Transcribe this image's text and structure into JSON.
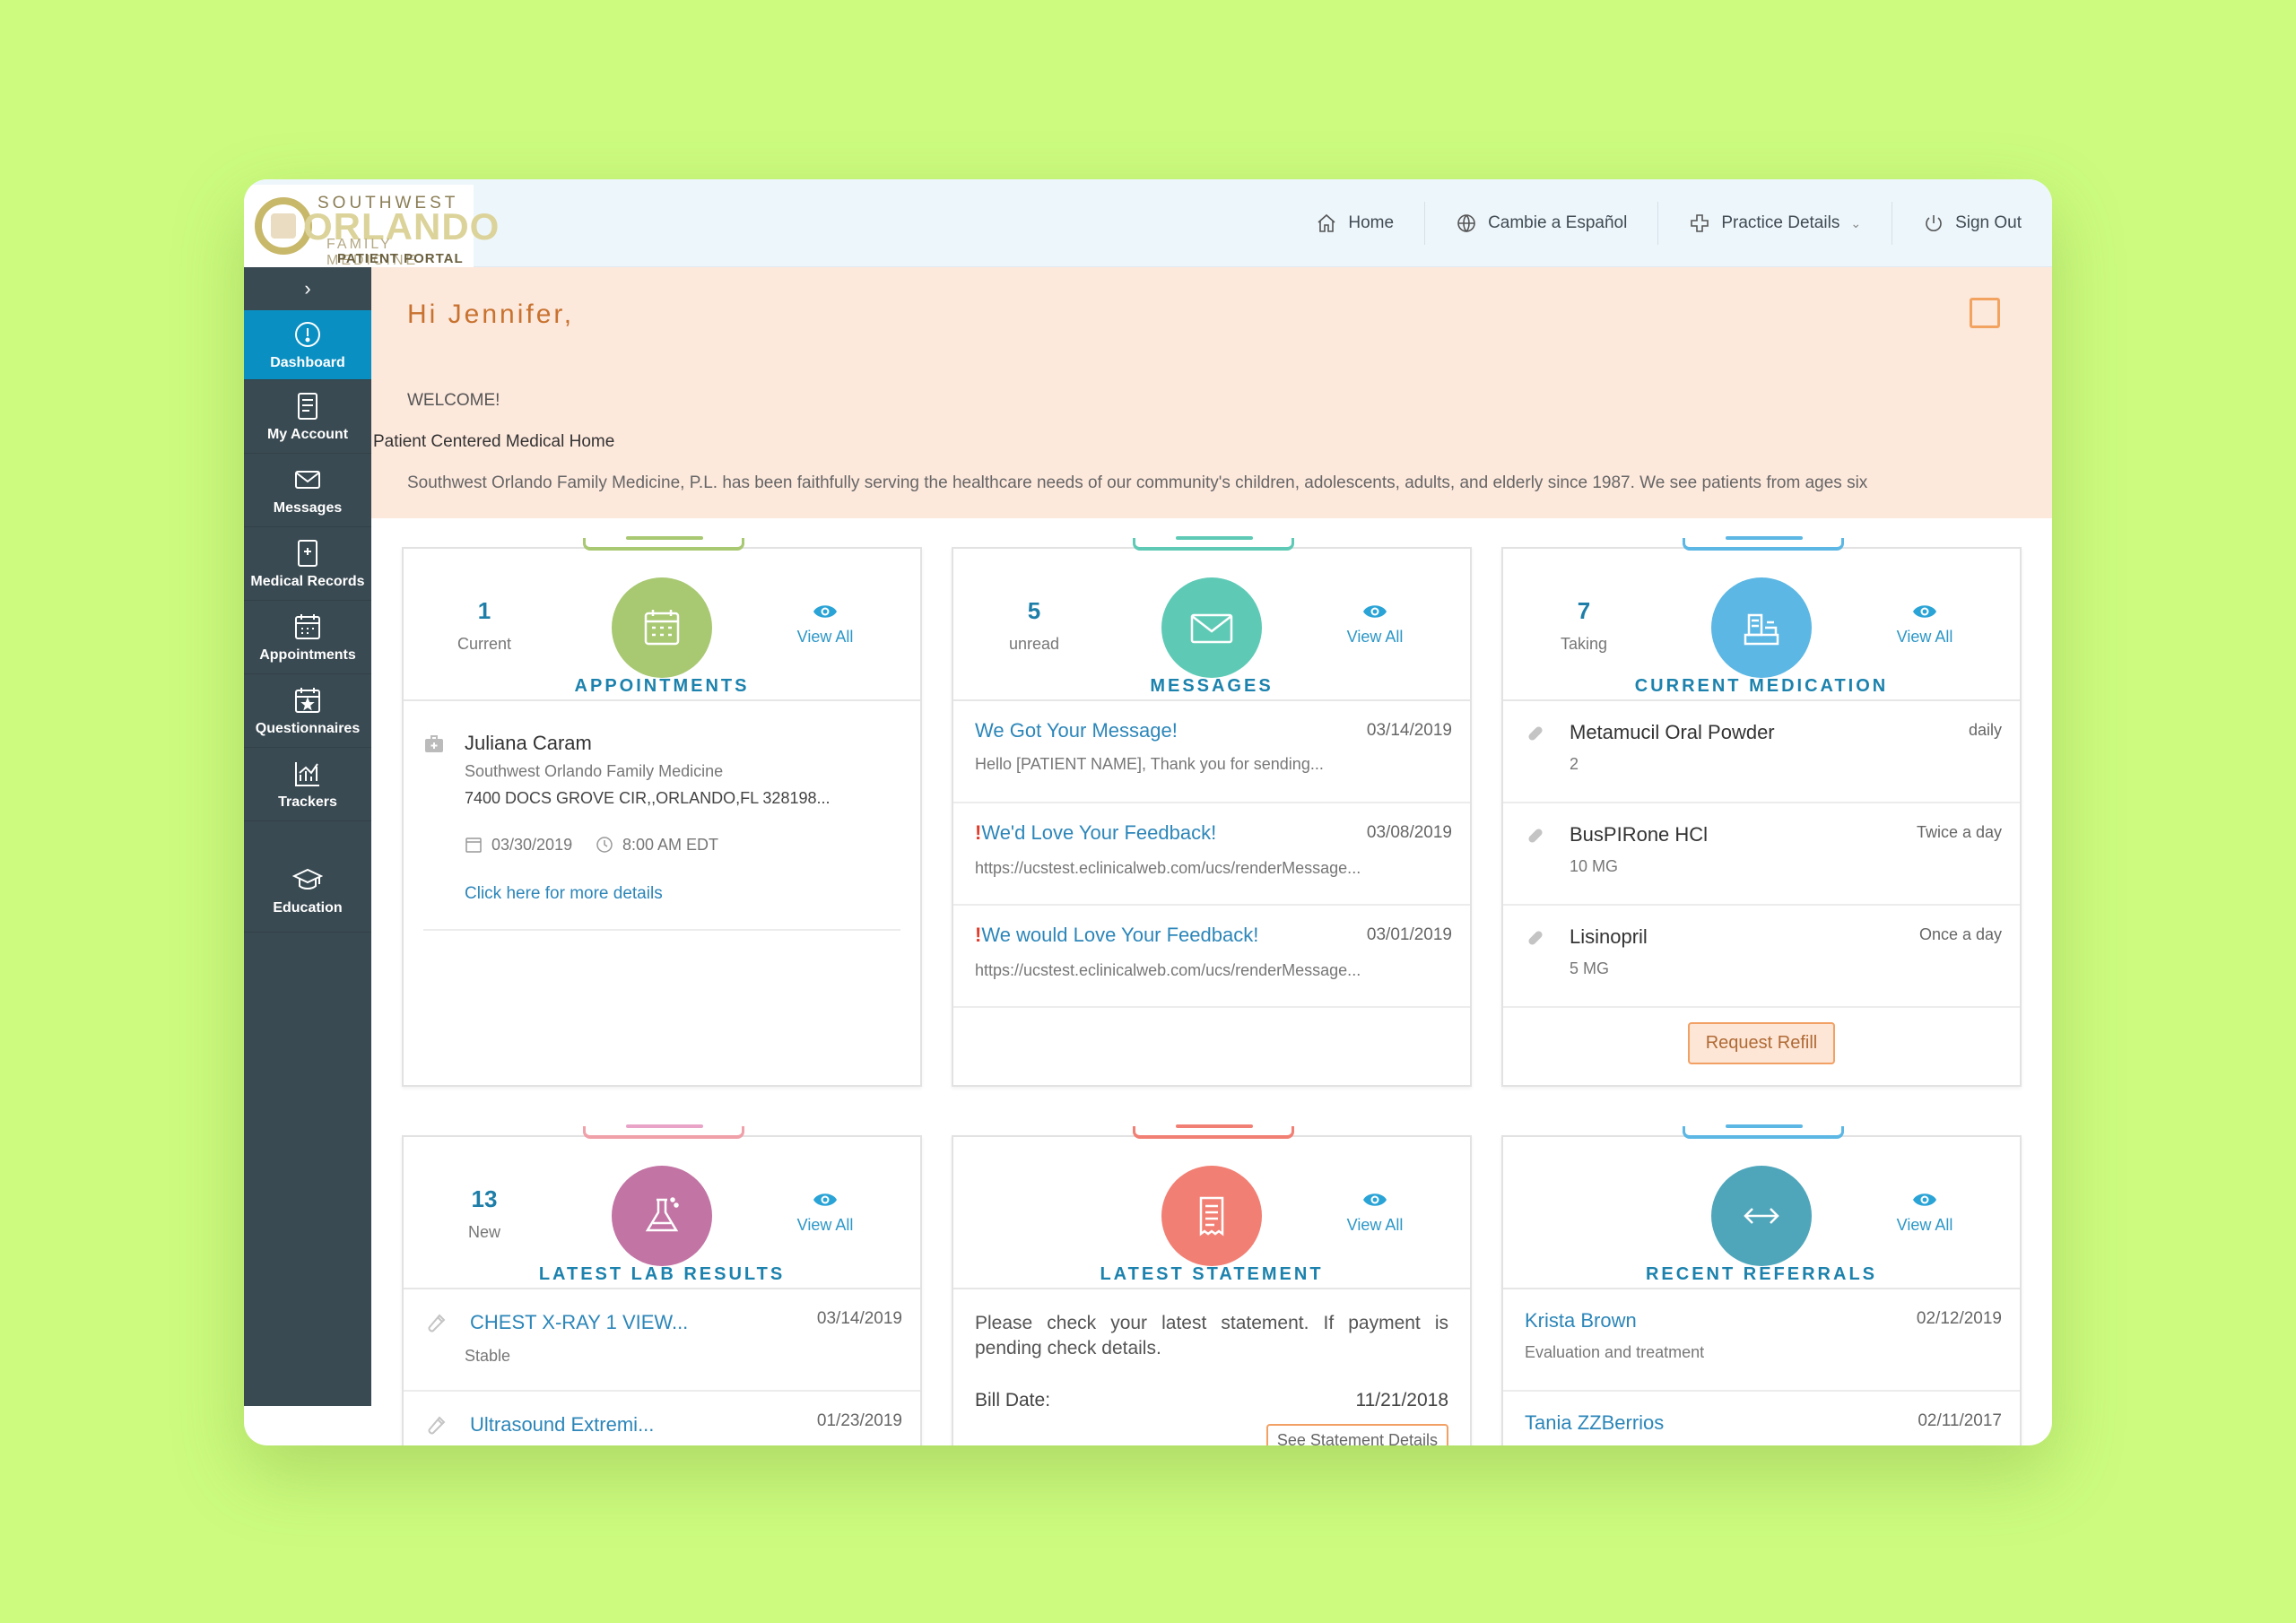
{
  "logo": {
    "line1": "SOUTHWEST",
    "line2": "ORLANDO",
    "line3": "FAMILY MEDICINE",
    "line4": "PATIENT PORTAL"
  },
  "nav": {
    "home": "Home",
    "spanish": "Cambie a Español",
    "practice": "Practice Details",
    "signout": "Sign Out"
  },
  "sidebar": {
    "toggle": "›",
    "items": [
      {
        "label": "Dashboard",
        "icon": "dashboard-icon"
      },
      {
        "label": "My Account",
        "icon": "account-icon"
      },
      {
        "label": "Messages",
        "icon": "mail-icon"
      },
      {
        "label": "Medical Records",
        "icon": "records-icon"
      },
      {
        "label": "Appointments",
        "icon": "calendar-icon"
      },
      {
        "label": "Questionnaires",
        "icon": "questionnaire-icon"
      },
      {
        "label": "Trackers",
        "icon": "chart-icon"
      },
      {
        "label": "Education",
        "icon": "graduation-cap-icon"
      }
    ]
  },
  "welcome": {
    "greeting": "Hi Jennifer,",
    "line1": "WELCOME!",
    "line2": "Patient Centered Medical Home",
    "line3": "Southwest Orlando Family Medicine, P.L. has been faithfully serving the healthcare needs of our community's children, adolescents, adults, and elderly since 1987. We see patients from ages six"
  },
  "appointments": {
    "count": "1",
    "count_label": "Current",
    "view_all": "View All",
    "title": "APPOINTMENTS",
    "provider": "Juliana Caram",
    "practice": "Southwest Orlando Family Medicine",
    "address": "7400 DOCS GROVE CIR,,ORLANDO,FL 328198...",
    "date": "03/30/2019",
    "time": "8:00 AM EDT",
    "details_link": "Click here for more details"
  },
  "messages": {
    "count": "5",
    "count_label": "unread",
    "view_all": "View All",
    "title": "MESSAGES",
    "items": [
      {
        "subject": "We Got Your Message!",
        "date": "03/14/2019",
        "preview": "Hello [PATIENT NAME], Thank you for sending...",
        "flag": ""
      },
      {
        "subject": "We'd Love Your Feedback!",
        "date": "03/08/2019",
        "preview": "https://ucstest.eclinicalweb.com/ucs/renderMessage...",
        "flag": "!"
      },
      {
        "subject": "We would Love Your Feedback!",
        "date": "03/01/2019",
        "preview": "https://ucstest.eclinicalweb.com/ucs/renderMessage...",
        "flag": "!"
      }
    ]
  },
  "medication": {
    "count": "7",
    "count_label": "Taking",
    "view_all": "View All",
    "title": "CURRENT MEDICATION",
    "items": [
      {
        "name": "Metamucil Oral Powder",
        "dose": "2",
        "freq": "daily"
      },
      {
        "name": "BusPIRone HCl",
        "dose": "10 MG",
        "freq": "Twice a day"
      },
      {
        "name": "Lisinopril",
        "dose": "5 MG",
        "freq": "Once a day"
      }
    ],
    "refill_button": "Request Refill"
  },
  "labs": {
    "count": "13",
    "count_label": "New",
    "view_all": "View All",
    "title": "LATEST LAB RESULTS",
    "items": [
      {
        "name": "CHEST X-RAY 1 VIEW...",
        "date": "03/14/2019",
        "status": "Stable"
      },
      {
        "name": "Ultrasound Extremi...",
        "date": "01/23/2019",
        "status": ""
      }
    ]
  },
  "statement": {
    "view_all": "View All",
    "title": "LATEST STATEMENT",
    "text": "Please check your latest statement. If payment is pending check details.",
    "bill_label": "Bill Date:",
    "bill_date": "11/21/2018",
    "details_button": "See Statement Details"
  },
  "referrals": {
    "view_all": "View All",
    "title": "RECENT REFERRALS",
    "items": [
      {
        "name": "Krista Brown",
        "date": "02/12/2019",
        "note": "Evaluation and treatment"
      },
      {
        "name": "Tania ZZBerrios",
        "date": "02/11/2017",
        "note": ""
      }
    ]
  },
  "colors": {
    "appointments": "#a8c872",
    "messages": "#5ecab6",
    "medication": "#5cb7e4",
    "labs": "#c274a4",
    "statement": "#f27f73",
    "referrals": "#4fa6bb"
  }
}
